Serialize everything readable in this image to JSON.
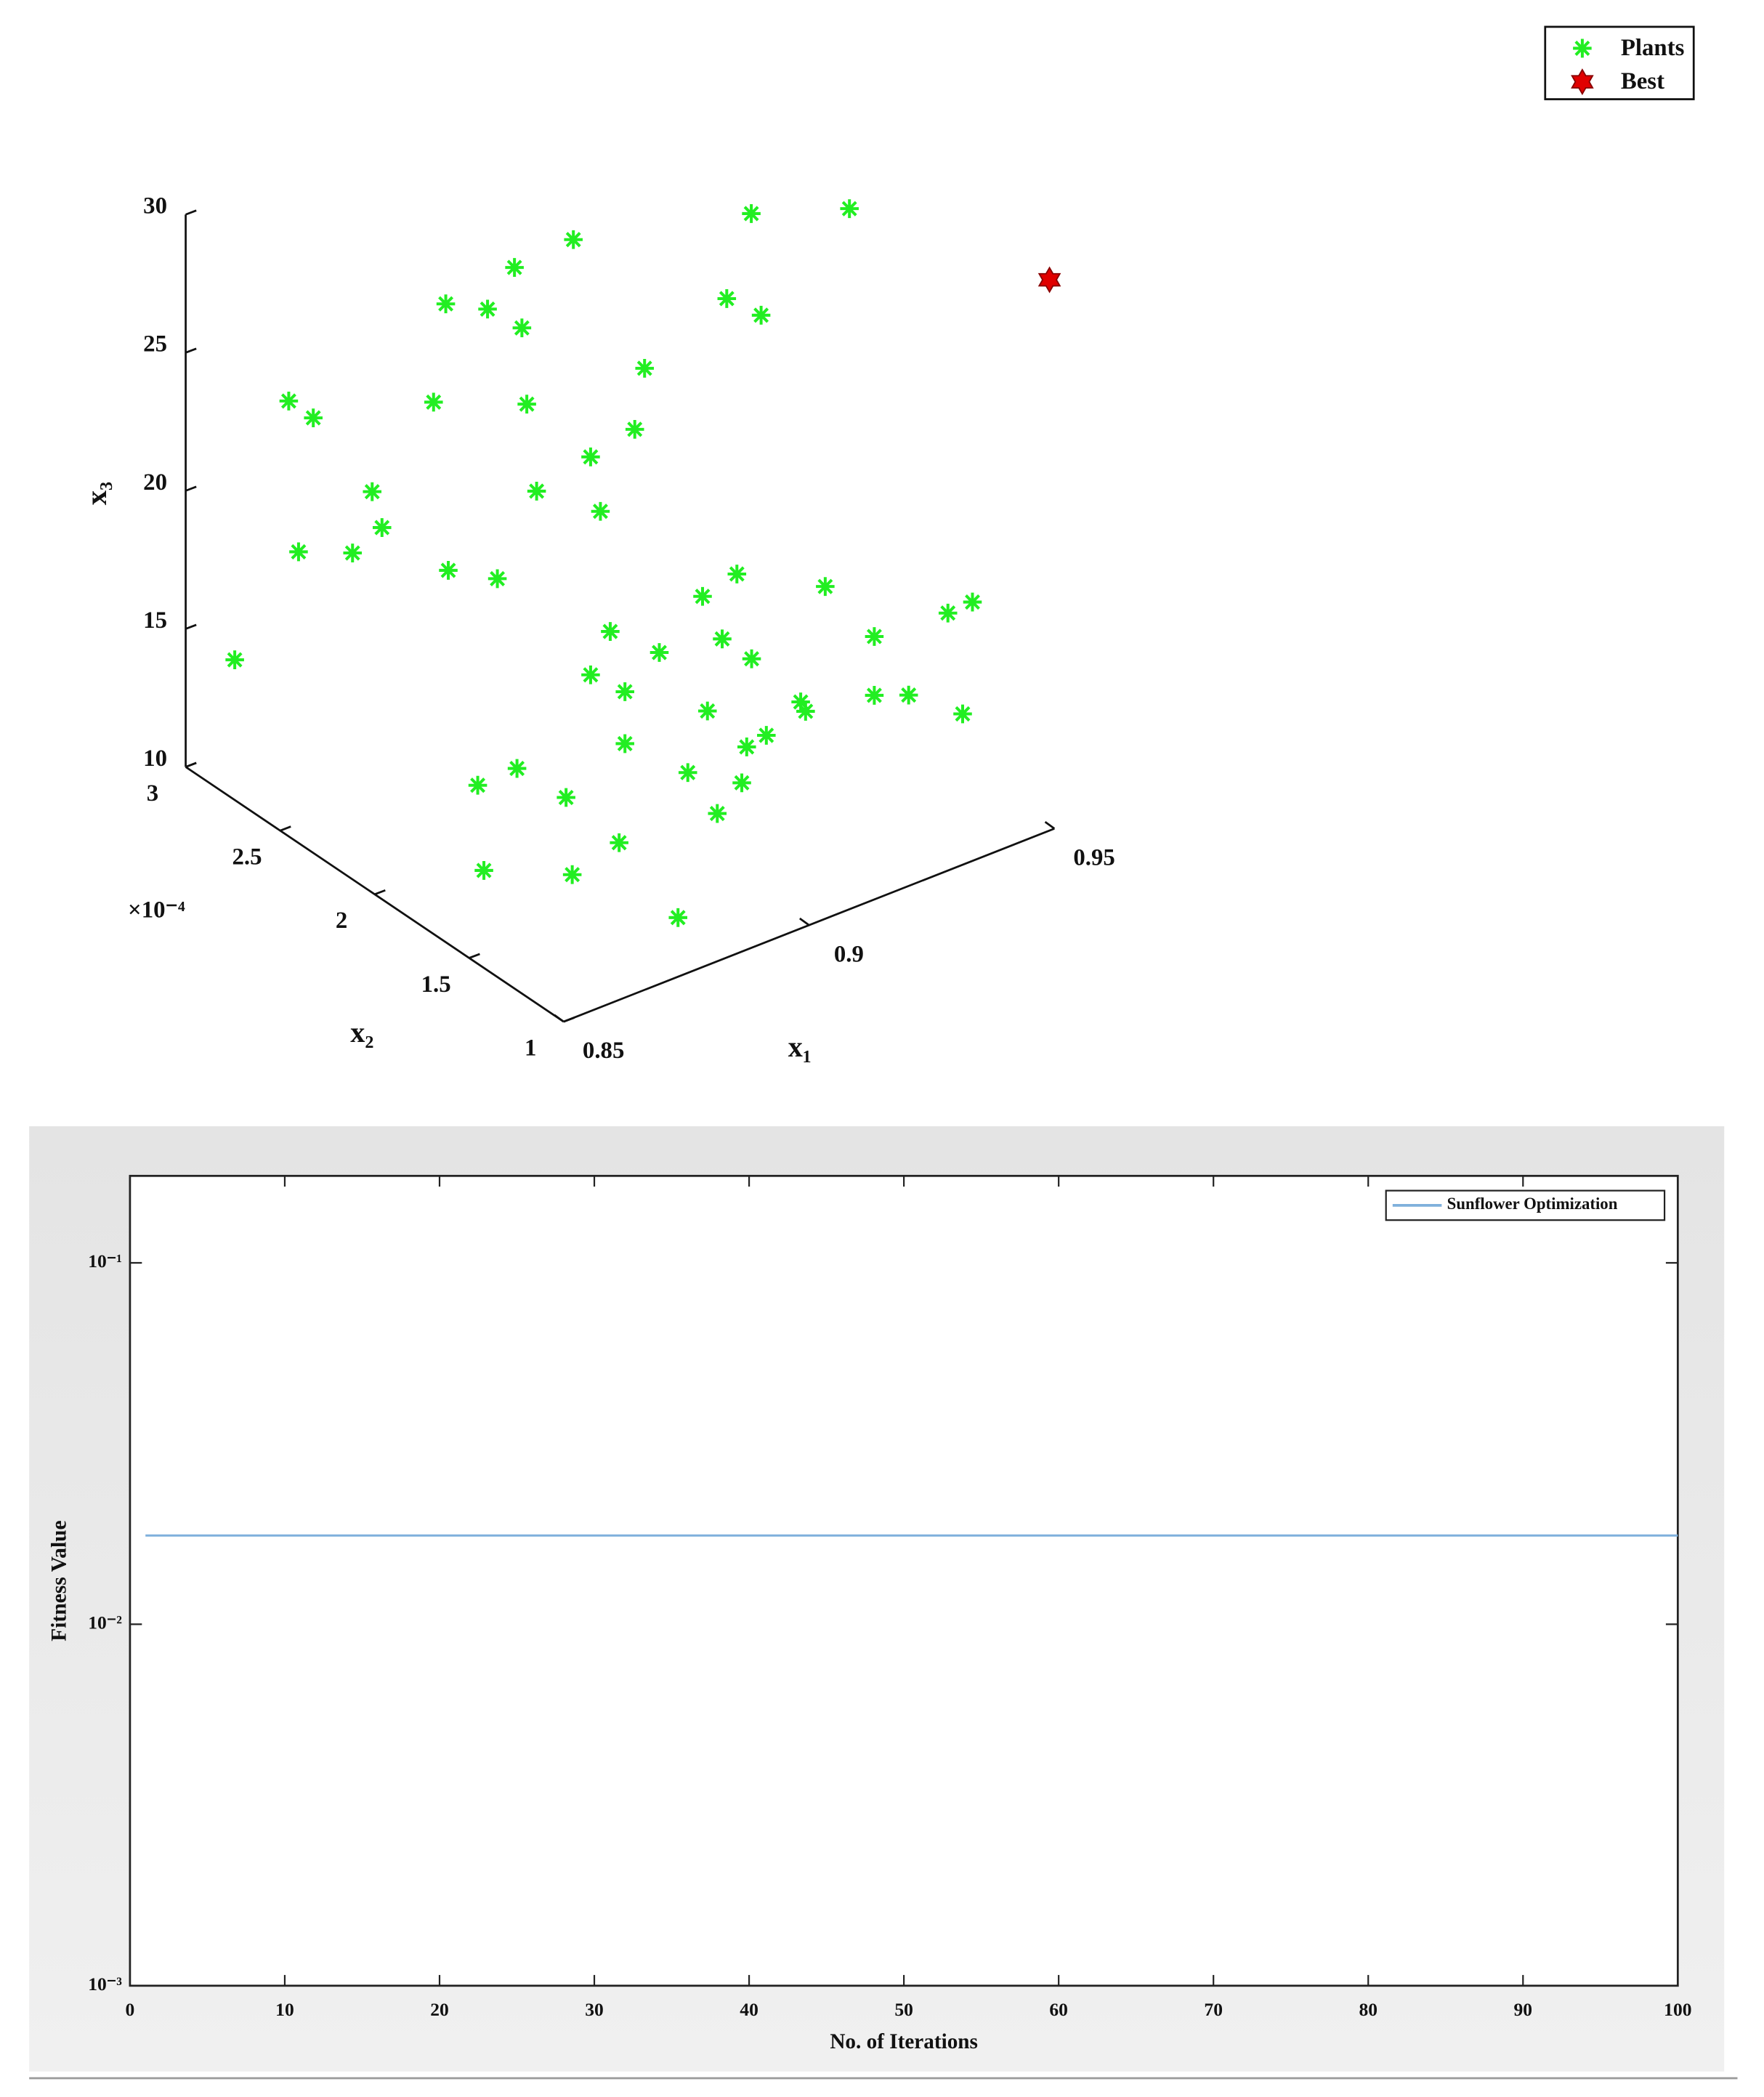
{
  "chart_data": [
    {
      "type": "scatter3d",
      "xlabel": "x₁",
      "ylabel": "x₂",
      "zlabel": "x₃",
      "y_multiplier": "×10⁻⁴",
      "xlim": [
        0.85,
        0.95
      ],
      "ylim": [
        1,
        3
      ],
      "zlim": [
        10,
        30
      ],
      "xticks": [
        0.85,
        0.9,
        0.95
      ],
      "yticks": [
        1,
        1.5,
        2,
        2.5,
        3
      ],
      "zticks": [
        10,
        15,
        20,
        25,
        30
      ],
      "legend": "top-right",
      "series": [
        {
          "name": "Plants",
          "color": "#22ee22",
          "marker": "asterisk",
          "x": [
            0.86,
            0.871,
            0.876,
            0.873,
            0.884,
            0.888,
            0.89,
            0.862,
            0.903,
            0.865,
            0.873,
            0.875,
            0.917,
            0.88,
            0.881,
            0.883,
            0.929,
            0.894,
            0.896,
            0.903,
            0.905,
            0.946,
            0.966,
            0.941,
            0.948,
            0.886,
            0.893,
            0.911,
            0.898,
            0.894,
            0.901,
            0.908,
            0.89,
            0.896,
            0.887,
            0.906,
            0.907,
            0.921,
            0.921,
            0.928,
            0.936,
            0.941,
            0.939,
            0.901,
            0.883,
            0.895,
            0.899,
            0.894,
            0.889,
            0.871,
            0.879,
            0.889,
            0.869,
            0.853,
            0.871,
            0.881
          ],
          "y": [
            3,
            3,
            3,
            3,
            3,
            3,
            3,
            2,
            3,
            2,
            2,
            2,
            3,
            2,
            2,
            2,
            3,
            2,
            2,
            2,
            2,
            2.5,
            2.5,
            2.5,
            2.5,
            1.2,
            1.2,
            1.2,
            2,
            2,
            2,
            2,
            1.2,
            1.2,
            1.2,
            1.2,
            1.2,
            1.2,
            1.2,
            1.2,
            1.2,
            1.2,
            1.2,
            2,
            1.2,
            1.2,
            1.2,
            1.2,
            1.2,
            2,
            2,
            2,
            1.2,
            1.5,
            1.5,
            1.2
          ],
          "z": [
            13.18,
            21.78,
            20.82,
            16.18,
            15.37,
            17.31,
            15.87,
            26.98,
            23.06,
            20.68,
            29.58,
            19.68,
            23.4,
            28.41,
            25.58,
            22.29,
            23.57,
            22.76,
            20.65,
            23.13,
            25.2,
            25.63,
            24.41,
            22.9,
            21.81,
            21.96,
            22.28,
            20.57,
            16.16,
            14.87,
            13.77,
            14.7,
            20.14,
            19.0,
            17.74,
            16.74,
            16.33,
            18.06,
            15.93,
            15.45,
            17.86,
            17.91,
            14.0,
            11.89,
            15.79,
            15.88,
            16.02,
            14.65,
            13.89,
            12.48,
            12.53,
            10.78,
            14.23,
            12.96,
            11.55,
            10.68
          ]
        },
        {
          "name": "Best",
          "color": "#e00000",
          "marker": "hexagram",
          "x": [
            0.949
          ],
          "y": [
            1
          ],
          "z": [
            29.94
          ]
        }
      ]
    },
    {
      "type": "line",
      "xlabel": "No. of Iterations",
      "ylabel": "Fitness Value",
      "xlim": [
        0,
        100
      ],
      "xticks": [
        0,
        10,
        20,
        30,
        40,
        50,
        60,
        70,
        80,
        90,
        100
      ],
      "ylim": [
        0.001,
        0.174
      ],
      "yscale": "log",
      "yticks": [
        {
          "value": 0.001,
          "label": "10⁻³"
        },
        {
          "value": 0.01,
          "label": "10⁻²"
        },
        {
          "value": 0.1,
          "label": "10⁻¹"
        }
      ],
      "legend": "top-right",
      "series": [
        {
          "name": "Sunflower Optimization",
          "color": "#7fb0dc",
          "x": [
            1,
            2,
            3,
            4,
            5,
            6,
            7,
            8,
            9,
            10,
            11,
            12,
            13,
            14,
            15,
            16,
            17,
            18,
            19,
            20,
            21,
            22,
            23,
            24,
            25,
            26,
            27,
            28,
            29,
            30,
            31,
            32,
            33,
            34,
            35,
            36,
            37,
            38,
            39,
            40,
            41,
            42,
            43,
            44,
            45,
            46,
            47,
            48,
            49,
            50,
            51,
            52,
            53,
            54,
            55,
            56,
            57,
            58,
            59,
            60,
            61,
            62,
            63,
            64,
            65,
            66,
            67,
            68,
            69,
            70,
            71,
            72,
            73,
            74,
            75,
            76,
            77,
            78,
            79,
            80,
            81,
            82,
            83,
            84,
            85,
            86,
            87,
            88,
            89,
            90,
            91,
            92,
            93,
            94,
            95,
            96,
            97,
            98,
            99,
            100
          ],
          "values": [
            0.0176,
            0.0176,
            0.0176,
            0.0176,
            0.0176,
            0.0176,
            0.0176,
            0.0176,
            0.0176,
            0.0176,
            0.0176,
            0.0176,
            0.0176,
            0.0176,
            0.0176,
            0.0176,
            0.0176,
            0.0176,
            0.0176,
            0.0176,
            0.0176,
            0.0176,
            0.0176,
            0.0176,
            0.0176,
            0.0176,
            0.0176,
            0.0176,
            0.0176,
            0.0176,
            0.0176,
            0.0176,
            0.0176,
            0.0176,
            0.0176,
            0.0176,
            0.0176,
            0.0176,
            0.0176,
            0.0176,
            0.0176,
            0.0176,
            0.0176,
            0.0176,
            0.0176,
            0.0176,
            0.0176,
            0.0176,
            0.0176,
            0.0176,
            0.0176,
            0.0176,
            0.0176,
            0.0176,
            0.0176,
            0.0176,
            0.0176,
            0.0176,
            0.0176,
            0.0176,
            0.0176,
            0.0176,
            0.0176,
            0.0176,
            0.0176,
            0.0176,
            0.0176,
            0.0176,
            0.0176,
            0.0176,
            0.0176,
            0.0176,
            0.0176,
            0.0176,
            0.0176,
            0.0176,
            0.0176,
            0.0176,
            0.0176,
            0.0176,
            0.0176,
            0.0176,
            0.0176,
            0.0176,
            0.0176,
            0.0176,
            0.0176,
            0.0176,
            0.0176,
            0.0176,
            0.0176,
            0.0176,
            0.0176,
            0.0176,
            0.0176,
            0.0176,
            0.0176,
            0.0176,
            0.0176,
            0.0176
          ]
        }
      ]
    }
  ]
}
